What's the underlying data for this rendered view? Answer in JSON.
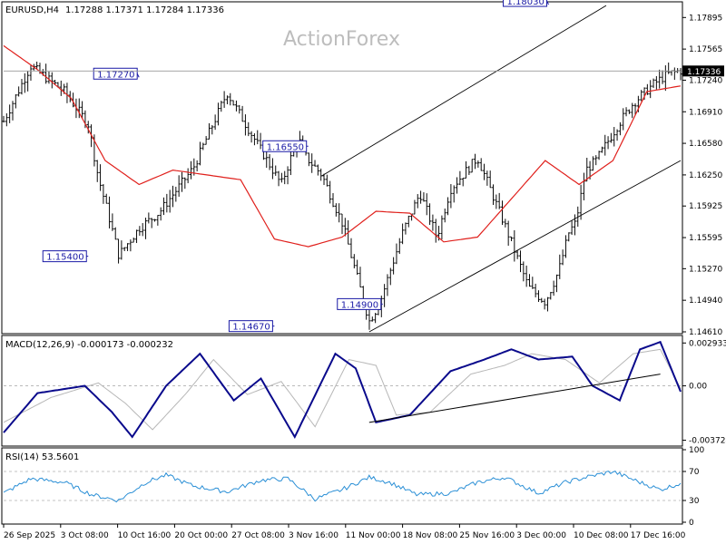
{
  "header": {
    "symbol": "EURUSD,H4",
    "ohlc": "1.17288 1.17371 1.17284 1.17336",
    "watermark": "ActionForex"
  },
  "colors": {
    "bars": "#0a0a0a",
    "ma": "#e0201c",
    "macd_line": "#0a0a8c",
    "macd_signal": "#b7b7b7",
    "rsi": "#2a8fd6",
    "channel": "#000000",
    "callout_border": "#1a1aa6"
  },
  "chart_data": [
    {
      "type": "ohlc",
      "panel": "price",
      "ylim": [
        1.1461,
        1.1804
      ],
      "yticks": [
        "1.17895",
        "1.17565",
        "1.17240",
        "1.16910",
        "1.16580",
        "1.16250",
        "1.15925",
        "1.15595",
        "1.15270",
        "1.14940",
        "1.14610"
      ],
      "current_price_label": "1.17336",
      "current_price": 1.17336,
      "series": [
        {
          "name": "EURUSD,H4",
          "kind": "ohlc",
          "anchors_x": [
            0,
            0.04,
            0.09,
            0.125,
            0.14,
            0.155,
            0.17,
            0.2,
            0.23,
            0.28,
            0.33,
            0.375,
            0.41,
            0.435,
            0.445,
            0.47,
            0.5,
            0.54,
            0.555,
            0.59,
            0.615,
            0.64,
            0.66,
            0.7,
            0.74,
            0.775,
            0.8,
            0.82,
            0.835,
            0.845,
            0.86,
            0.875,
            0.91,
            0.93,
            0.96,
            0.98,
            1.0
          ],
          "anchors_close": [
            1.1681,
            1.1739,
            1.1712,
            1.1678,
            1.1622,
            1.1583,
            1.1541,
            1.1569,
            1.1586,
            1.1632,
            1.1711,
            1.1657,
            1.1615,
            1.1664,
            1.1645,
            1.1625,
            1.1575,
            1.1472,
            1.149,
            1.1566,
            1.1606,
            1.156,
            1.161,
            1.1643,
            1.1573,
            1.1508,
            1.1492,
            1.1525,
            1.1565,
            1.1575,
            1.163,
            1.164,
            1.168,
            1.17,
            1.172,
            1.173,
            1.1734
          ],
          "notes": "anchors are approximate path points estimated from the chart; x is fraction of the time axis"
        },
        {
          "name": "MA",
          "kind": "line",
          "anchors_x": [
            0,
            0.05,
            0.1,
            0.15,
            0.2,
            0.25,
            0.3,
            0.35,
            0.4,
            0.45,
            0.5,
            0.55,
            0.6,
            0.65,
            0.7,
            0.75,
            0.8,
            0.85,
            0.9,
            0.95,
            1.0
          ],
          "anchors_value": [
            1.176,
            1.1735,
            1.1705,
            1.164,
            1.1615,
            1.163,
            1.1625,
            1.162,
            1.1558,
            1.155,
            1.156,
            1.1587,
            1.1585,
            1.1555,
            1.156,
            1.16,
            1.164,
            1.1615,
            1.164,
            1.1712,
            1.1718
          ]
        }
      ],
      "channel_lines": [
        {
          "x": [
            0.47,
            0.89
          ],
          "y": [
            1.1624,
            1.1802
          ]
        },
        {
          "x": [
            0.54,
            1.0
          ],
          "y": [
            1.1461,
            1.164
          ]
        }
      ],
      "callouts": [
        {
          "text": "1.17270",
          "x": 0.2,
          "value": 1.1727
        },
        {
          "text": "1.15400",
          "x": 0.125,
          "value": 1.154
        },
        {
          "text": "1.16550",
          "x": 0.45,
          "value": 1.1655
        },
        {
          "text": "1.14670",
          "x": 0.4,
          "value": 1.1467
        },
        {
          "text": "1.14900",
          "x": 0.56,
          "value": 1.149
        },
        {
          "text": "1.18030",
          "x": 0.805,
          "value": 1.1803
        }
      ]
    },
    {
      "type": "line",
      "panel": "macd",
      "title": "MACD(12,26,9) -0.000173 -0.000232",
      "ylim": [
        -0.004,
        0.0032
      ],
      "yticks": [
        "0.002933",
        "0.00",
        "-0.003724"
      ],
      "current_label": "0.00",
      "series": [
        {
          "name": "MACD",
          "anchors_x": [
            0,
            0.05,
            0.12,
            0.16,
            0.19,
            0.24,
            0.29,
            0.34,
            0.38,
            0.43,
            0.49,
            0.52,
            0.55,
            0.6,
            0.66,
            0.71,
            0.75,
            0.79,
            0.84,
            0.87,
            0.91,
            0.94,
            0.97,
            1.0
          ],
          "anchors_value": [
            -0.0032,
            -0.0005,
            0.0,
            -0.0018,
            -0.0035,
            0.0,
            0.0022,
            -0.001,
            0.0005,
            -0.0035,
            0.0022,
            0.0012,
            -0.0025,
            -0.002,
            0.001,
            0.0018,
            0.0025,
            0.0018,
            0.002,
            0.0,
            -0.001,
            0.0025,
            0.003,
            -0.0004
          ]
        },
        {
          "name": "Signal",
          "anchors_x": [
            0,
            0.07,
            0.14,
            0.18,
            0.22,
            0.27,
            0.31,
            0.36,
            0.41,
            0.46,
            0.51,
            0.55,
            0.58,
            0.63,
            0.69,
            0.74,
            0.78,
            0.83,
            0.88,
            0.93,
            0.97,
            1.0
          ],
          "anchors_value": [
            -0.0025,
            -0.0008,
            0.0002,
            -0.0012,
            -0.003,
            -0.0005,
            0.0018,
            -0.0006,
            0.0003,
            -0.0028,
            0.0018,
            0.0014,
            -0.002,
            -0.0018,
            0.0008,
            0.0014,
            0.0022,
            0.0018,
            0.0002,
            0.0022,
            0.0025,
            -0.0002
          ]
        }
      ],
      "trendline": {
        "x": [
          0.54,
          0.97
        ],
        "y": [
          -0.0025,
          0.0008
        ]
      }
    },
    {
      "type": "line",
      "panel": "rsi",
      "title": "RSI(14) 53.5601",
      "ylim": [
        0,
        100
      ],
      "yticks": [
        "100",
        "70",
        "30",
        "0"
      ],
      "levels": [
        70,
        30
      ],
      "series": [
        {
          "name": "RSI(14)",
          "anchors_x": [
            0,
            0.04,
            0.09,
            0.13,
            0.17,
            0.21,
            0.24,
            0.28,
            0.33,
            0.38,
            0.42,
            0.46,
            0.5,
            0.54,
            0.57,
            0.61,
            0.66,
            0.7,
            0.74,
            0.79,
            0.83,
            0.86,
            0.9,
            0.94,
            0.97,
            1.0
          ],
          "anchors_value": [
            40,
            60,
            55,
            38,
            30,
            55,
            65,
            50,
            42,
            58,
            60,
            32,
            45,
            62,
            55,
            38,
            40,
            55,
            62,
            40,
            55,
            62,
            70,
            55,
            45,
            53.56
          ]
        }
      ]
    }
  ],
  "x_axis": {
    "labels": [
      "26 Sep 2025",
      "3 Oct 08:00",
      "10 Oct 16:00",
      "20 Oct 00:00",
      "27 Oct 08:00",
      "3 Nov 16:00",
      "11 Nov 00:00",
      "18 Nov 08:00",
      "25 Nov 16:00",
      "3 Dec 00:00",
      "10 Dec 08:00",
      "17 Dec 16:00"
    ]
  }
}
